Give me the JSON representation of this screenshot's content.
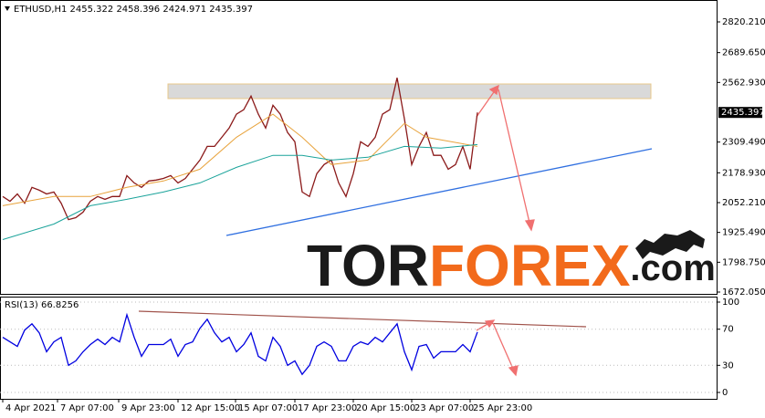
{
  "header": {
    "symbol_line": "ETHUSD,H1  2455.322 2458.396 2424.971 2435.397"
  },
  "logo": {
    "tor": "TOR",
    "forex": "FOREX",
    "com": ".com"
  },
  "chart_data": [
    {
      "type": "line",
      "xlim": [
        -0.375,
        97.75
      ],
      "xticks": [
        {
          "value": 0,
          "label": "4 Apr 2021"
        },
        {
          "value": 7.5,
          "label": "7 Apr 07:00"
        },
        {
          "value": 15.875,
          "label": "9 Apr 23:00"
        },
        {
          "value": 24,
          "label": "12 Apr 15:00"
        },
        {
          "value": 31.875,
          "label": "15 Apr 07:00"
        },
        {
          "value": 40,
          "label": "17 Apr 23:00"
        },
        {
          "value": 48,
          "label": "20 Apr 15:00"
        },
        {
          "value": 56,
          "label": "23 Apr 07:00"
        },
        {
          "value": 64,
          "label": "25 Apr 23:00"
        }
      ],
      "ylim": [
        1664.3,
        2913.3
      ],
      "yticks": [
        {
          "value": 2820.21,
          "label": "2820.210"
        },
        {
          "value": 2689.65,
          "label": "2689.650"
        },
        {
          "value": 2562.93,
          "label": "2562.930"
        },
        {
          "value": 2309.49,
          "label": "2309.490"
        },
        {
          "value": 2178.93,
          "label": "2178.930"
        },
        {
          "value": 2052.21,
          "label": "2052.210"
        },
        {
          "value": 1925.49,
          "label": "1925.490"
        },
        {
          "value": 1798.75,
          "label": "1798.750"
        },
        {
          "value": 1672.05,
          "label": "1672.050"
        }
      ],
      "last_price": 2435.397,
      "series": [
        {
          "color": "#8b1a1a",
          "values": [
            2078,
            2058,
            2089,
            2050,
            2117,
            2105,
            2089,
            2097,
            2050,
            1980,
            1988,
            2012,
            2058,
            2078,
            2066,
            2078,
            2078,
            2167,
            2136,
            2117,
            2144,
            2148,
            2155,
            2167,
            2136,
            2155,
            2194,
            2233,
            2291,
            2291,
            2330,
            2369,
            2428,
            2447,
            2505,
            2428,
            2369,
            2466,
            2428,
            2350,
            2311,
            2097,
            2078,
            2175,
            2214,
            2233,
            2136,
            2078,
            2175,
            2311,
            2291,
            2330,
            2428,
            2447,
            2583,
            2408,
            2214,
            2291,
            2350,
            2253,
            2253,
            2194,
            2214,
            2291,
            2194,
            2435.397
          ]
        },
        {
          "color": "#e8a33c",
          "x": [
            0,
            7,
            12,
            17,
            22,
            27,
            32,
            37,
            41,
            45,
            50,
            55,
            58,
            65
          ],
          "values": [
            2039,
            2078,
            2078,
            2117,
            2144,
            2194,
            2330,
            2428,
            2330,
            2214,
            2233,
            2389,
            2330,
            2291
          ]
        },
        {
          "color": "#1aa39a",
          "x": [
            0,
            7,
            12,
            17,
            22,
            27,
            32,
            37,
            41,
            45,
            50,
            55,
            60,
            65
          ],
          "values": [
            1895,
            1961,
            2039,
            2066,
            2097,
            2136,
            2202,
            2253,
            2253,
            2233,
            2245,
            2291,
            2284,
            2299
          ]
        }
      ]
    },
    {
      "type": "line",
      "title": "RSI(13) 66.8256",
      "xlim": [
        -0.375,
        97.75
      ],
      "ylim": [
        0,
        100
      ],
      "yticks": [
        100,
        70,
        30,
        0
      ],
      "grid": true,
      "series": [
        {
          "color": "#0000e0",
          "values": [
            61,
            56,
            51,
            69,
            76,
            66,
            45,
            56,
            61,
            30,
            35,
            45,
            53,
            59,
            53,
            61,
            56,
            86,
            61,
            40,
            53,
            53,
            53,
            59,
            40,
            53,
            56,
            71,
            81,
            66,
            56,
            61,
            45,
            53,
            66,
            40,
            35,
            61,
            51,
            30,
            35,
            20,
            30,
            51,
            56,
            51,
            35,
            35,
            51,
            56,
            53,
            61,
            56,
            66,
            76,
            45,
            25,
            51,
            53,
            38,
            45,
            45,
            45,
            53,
            45,
            66.8256
          ]
        }
      ]
    }
  ]
}
